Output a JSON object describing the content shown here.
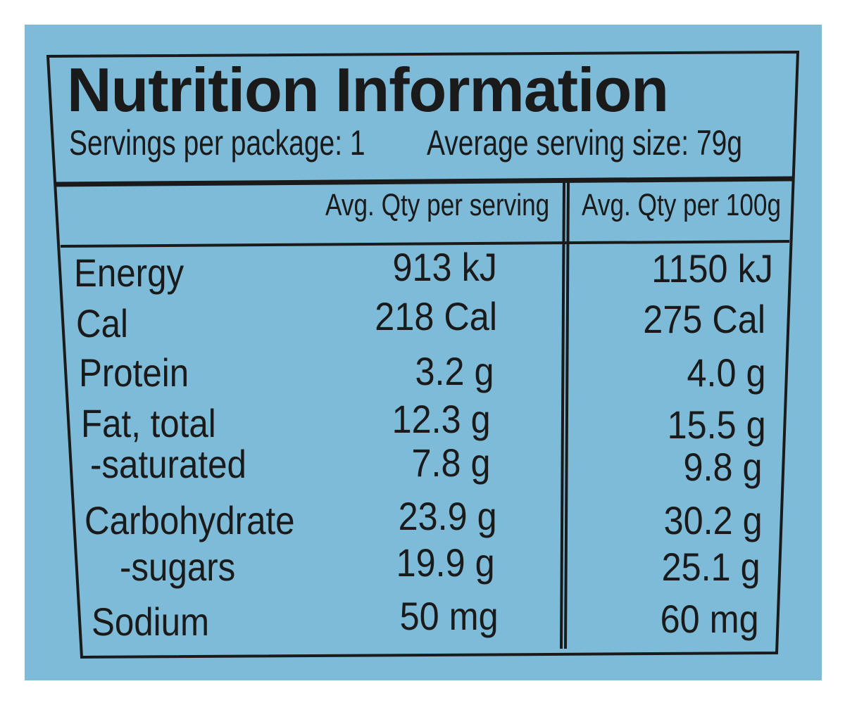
{
  "title": "Nutrition Information",
  "servings_per_package": "Servings per package: 1",
  "average_serving_size": "Average serving size: 79g",
  "columns": {
    "per_serving": "Avg. Qty per serving",
    "per_100g": "Avg. Qty per 100g"
  },
  "rows": [
    {
      "label": "Energy",
      "per_serving": "913 kJ",
      "per_100g": "1150 kJ"
    },
    {
      "label": "Cal",
      "per_serving": "218 Cal",
      "per_100g": "275 Cal"
    },
    {
      "label": "Protein",
      "per_serving": "3.2 g",
      "per_100g": "4.0 g"
    },
    {
      "label": "Fat, total",
      "per_serving": "12.3 g",
      "per_100g": "15.5 g"
    },
    {
      "label": "-saturated",
      "per_serving": "7.8 g",
      "per_100g": "9.8 g"
    },
    {
      "label": "Carbohydrate",
      "per_serving": "23.9 g",
      "per_100g": "30.2 g"
    },
    {
      "label": "-sugars",
      "per_serving": "19.9 g",
      "per_100g": "25.1 g"
    },
    {
      "label": "Sodium",
      "per_serving": "50 mg",
      "per_100g": "60 mg"
    }
  ],
  "colors": {
    "background": "#7dbbd8",
    "ink": "#1a1a1a"
  }
}
